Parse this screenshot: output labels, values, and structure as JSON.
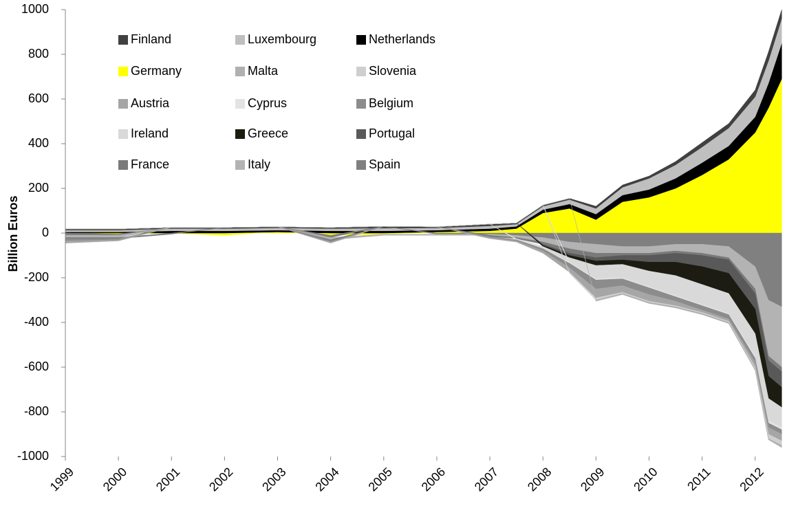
{
  "chart_data": {
    "type": "stacked-area",
    "y_label": "Billion Euros",
    "x": [
      1999,
      2000,
      2001,
      2002,
      2003,
      2004,
      2005,
      2006,
      2007,
      2007.5,
      2008,
      2008.5,
      2009,
      2009.5,
      2010,
      2010.5,
      2011,
      2011.5,
      2012,
      2012.25,
      2012.5
    ],
    "xlim": [
      1999,
      2012.6
    ],
    "xticks": [
      1999,
      2000,
      2001,
      2002,
      2003,
      2004,
      2005,
      2006,
      2007,
      2008,
      2009,
      2010,
      2011,
      2012
    ],
    "ylim": [
      -1000,
      1000
    ],
    "yticks": [
      -1000,
      -800,
      -600,
      -400,
      -200,
      0,
      200,
      400,
      600,
      800,
      1000
    ],
    "series": [
      {
        "name": "Germany",
        "color": "#ffff00",
        "values": [
          0,
          -5,
          0,
          -10,
          5,
          -10,
          -5,
          5,
          10,
          20,
          90,
          110,
          60,
          140,
          160,
          200,
          260,
          330,
          450,
          560,
          690
        ]
      },
      {
        "name": "Netherlands",
        "color": "#000000",
        "values": [
          5,
          5,
          10,
          10,
          8,
          10,
          10,
          8,
          10,
          10,
          15,
          20,
          25,
          30,
          35,
          45,
          55,
          60,
          70,
          110,
          160
        ]
      },
      {
        "name": "Luxembourg",
        "color": "#bfbfbf",
        "values": [
          8,
          8,
          10,
          10,
          10,
          10,
          12,
          10,
          12,
          10,
          15,
          20,
          25,
          35,
          50,
          60,
          70,
          80,
          90,
          100,
          110
        ]
      },
      {
        "name": "Finland",
        "color": "#404040",
        "values": [
          5,
          5,
          5,
          5,
          5,
          5,
          8,
          5,
          8,
          5,
          5,
          5,
          10,
          10,
          10,
          15,
          20,
          20,
          30,
          40,
          40
        ]
      },
      {
        "name": "Spain",
        "color": "#808080",
        "values": [
          -10,
          -5,
          0,
          0,
          0,
          -10,
          0,
          -5,
          -5,
          -10,
          -20,
          -40,
          -50,
          -60,
          -60,
          -50,
          -50,
          -60,
          -150,
          -300,
          -330
        ]
      },
      {
        "name": "Italy",
        "color": "#b3b3b3",
        "values": [
          -10,
          -10,
          0,
          0,
          0,
          -10,
          -5,
          -5,
          -5,
          -10,
          -20,
          -30,
          -40,
          -30,
          -30,
          -30,
          -40,
          -50,
          -100,
          -250,
          -270
        ]
      },
      {
        "name": "France",
        "color": "#7a7a7a",
        "values": [
          -5,
          -5,
          -5,
          0,
          0,
          -5,
          0,
          0,
          -5,
          -5,
          -10,
          -20,
          -20,
          -10,
          -10,
          -10,
          -10,
          -10,
          -20,
          -20,
          -20
        ]
      },
      {
        "name": "Portugal",
        "color": "#595959",
        "values": [
          0,
          0,
          0,
          0,
          0,
          0,
          0,
          0,
          0,
          0,
          -5,
          -10,
          -15,
          -20,
          -30,
          -40,
          -50,
          -60,
          -70,
          -70,
          -70
        ]
      },
      {
        "name": "Greece",
        "color": "#1c1c12",
        "values": [
          0,
          0,
          0,
          0,
          0,
          0,
          0,
          0,
          0,
          0,
          -5,
          -10,
          -20,
          -20,
          -40,
          -60,
          -80,
          -90,
          -110,
          -100,
          -90
        ]
      },
      {
        "name": "Ireland",
        "color": "#d9d9d9",
        "values": [
          0,
          0,
          0,
          0,
          0,
          0,
          0,
          0,
          0,
          -5,
          -10,
          -20,
          -60,
          -60,
          -70,
          -90,
          -90,
          -90,
          -100,
          -100,
          -90
        ]
      },
      {
        "name": "Cyprus",
        "color": "#e3e3e3",
        "values": [
          0,
          0,
          0,
          0,
          0,
          0,
          0,
          0,
          0,
          0,
          0,
          -5,
          -5,
          -5,
          -5,
          -5,
          -5,
          -5,
          -10,
          -10,
          -10
        ]
      },
      {
        "name": "Belgium",
        "color": "#8c8c8c",
        "values": [
          -10,
          -5,
          0,
          0,
          0,
          -5,
          0,
          0,
          -5,
          -5,
          -10,
          -20,
          -40,
          -30,
          -30,
          -20,
          -20,
          -20,
          -20,
          -20,
          -20
        ]
      },
      {
        "name": "Austria",
        "color": "#a6a6a6",
        "values": [
          -10,
          -5,
          0,
          0,
          0,
          -5,
          0,
          0,
          -5,
          -5,
          -10,
          -20,
          -40,
          -30,
          -30,
          -20,
          -10,
          -10,
          -20,
          -30,
          -30
        ]
      },
      {
        "name": "Slovenia",
        "color": "#cfcfcf",
        "values": [
          0,
          0,
          0,
          0,
          0,
          0,
          0,
          0,
          0,
          0,
          0,
          -5,
          -10,
          -5,
          -5,
          -5,
          -5,
          -5,
          -10,
          -20,
          -20
        ]
      },
      {
        "name": "Malta",
        "color": "#b0b0b0",
        "values": [
          0,
          0,
          0,
          0,
          0,
          0,
          0,
          0,
          0,
          0,
          0,
          0,
          -5,
          -5,
          -5,
          -5,
          -5,
          -5,
          -5,
          -5,
          -10
        ]
      }
    ]
  }
}
